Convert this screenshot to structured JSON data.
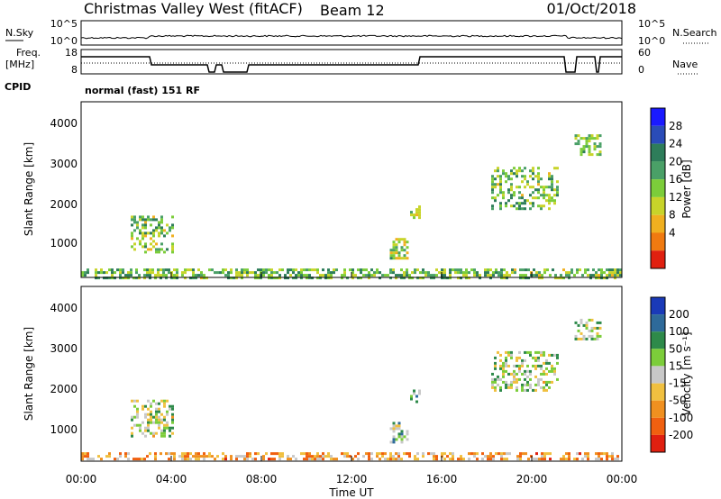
{
  "header": {
    "station": "Christmas Valley West (fitACF)",
    "beam": "Beam 12",
    "date": "01/Oct/2018"
  },
  "noise_panel": {
    "left_label": "N.Sky",
    "left_ticks": [
      "10^5",
      "10^0"
    ],
    "right_label": "N.Search",
    "right_ticks": [
      "10^5",
      "10^0"
    ]
  },
  "freq_panel": {
    "left_label_line1": "Freq.",
    "left_label_line2": "[MHz]",
    "left_ticks": [
      "18",
      "8"
    ],
    "right_label": "Nave",
    "right_ticks": [
      "60",
      "0"
    ]
  },
  "cpid": {
    "label": "CPID",
    "value": "normal (fast) 151 RF"
  },
  "chart_data": [
    {
      "type": "heatmap",
      "name": "power",
      "ylabel": "Slant Range [km]",
      "xlabel": "",
      "ylim": [
        180,
        4500
      ],
      "yticks": [
        "1000",
        "2000",
        "3000",
        "4000"
      ],
      "colorbar_label": "Power [dB]",
      "colorbar_ticks": [
        "4",
        "8",
        "12",
        "16",
        "20",
        "24",
        "28"
      ],
      "colorbar_colors": [
        "#1a1aff",
        "#2a4cb8",
        "#2e7d5a",
        "#4aa067",
        "#7ccd3a",
        "#c8d42a",
        "#f0b020",
        "#f07a10",
        "#e02010"
      ],
      "patches": [
        {
          "t0": 0.0,
          "t1": 24.0,
          "r0": 200,
          "r1": 400,
          "level": 0.45,
          "density": 0.55
        },
        {
          "t0": 2.2,
          "t1": 4.1,
          "r0": 800,
          "r1": 1700,
          "level": 0.5,
          "density": 0.45
        },
        {
          "t0": 13.7,
          "t1": 14.5,
          "r0": 650,
          "r1": 1150,
          "level": 0.55,
          "density": 0.6
        },
        {
          "t0": 14.6,
          "t1": 15.0,
          "r0": 1650,
          "r1": 1950,
          "level": 0.55,
          "density": 0.6
        },
        {
          "t0": 18.2,
          "t1": 21.1,
          "r0": 1900,
          "r1": 2900,
          "level": 0.45,
          "density": 0.4
        },
        {
          "t0": 21.9,
          "t1": 23.1,
          "r0": 3200,
          "r1": 3700,
          "level": 0.45,
          "density": 0.5
        }
      ]
    },
    {
      "type": "heatmap",
      "name": "velocity",
      "ylabel": "Slant Range [km]",
      "xlabel": "Time UT",
      "ylim": [
        180,
        4500
      ],
      "yticks": [
        "1000",
        "2000",
        "3000",
        "4000"
      ],
      "xticks": [
        "00:00",
        "04:00",
        "08:00",
        "12:00",
        "16:00",
        "20:00",
        "00:00"
      ],
      "xlim": [
        0,
        24
      ],
      "colorbar_label": "Velocity [m s⁻¹]",
      "colorbar_ticks": [
        "200",
        "100",
        "50",
        "15",
        "-15",
        "-50",
        "-100",
        "-200"
      ],
      "colorbar_colors": [
        "#1a3ab8",
        "#2e6a9a",
        "#2e8a4a",
        "#7ccd3a",
        "#c8c8c8",
        "#f0c040",
        "#f09020",
        "#f06010",
        "#e02010"
      ],
      "patches": [
        {
          "t0": 0.0,
          "t1": 24.0,
          "r0": 200,
          "r1": 400,
          "level": 0.7,
          "density": 0.5
        },
        {
          "t0": 2.2,
          "t1": 4.1,
          "r0": 800,
          "r1": 1700,
          "level": 0.45,
          "density": 0.4
        },
        {
          "t0": 13.7,
          "t1": 14.5,
          "r0": 650,
          "r1": 1150,
          "level": 0.4,
          "density": 0.55
        },
        {
          "t0": 14.6,
          "t1": 15.0,
          "r0": 1650,
          "r1": 1950,
          "level": 0.35,
          "density": 0.6
        },
        {
          "t0": 18.2,
          "t1": 21.1,
          "r0": 1900,
          "r1": 2900,
          "level": 0.45,
          "density": 0.4
        },
        {
          "t0": 21.9,
          "t1": 23.1,
          "r0": 3200,
          "r1": 3700,
          "level": 0.45,
          "density": 0.5
        }
      ]
    }
  ]
}
